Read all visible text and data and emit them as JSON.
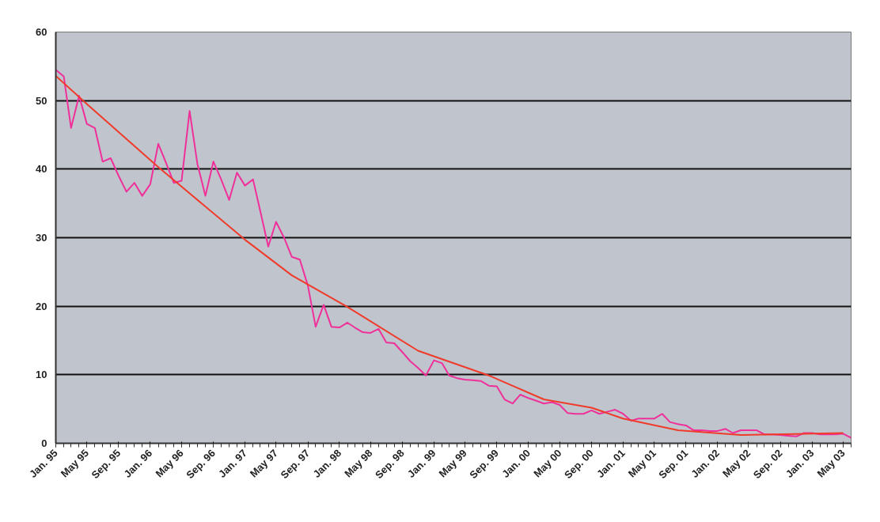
{
  "chart_data": {
    "type": "line",
    "x": [
      "1995-01",
      "1995-02",
      "1995-03",
      "1995-04",
      "1995-05",
      "1995-06",
      "1995-07",
      "1995-08",
      "1995-09",
      "1995-10",
      "1995-11",
      "1995-12",
      "1996-01",
      "1996-02",
      "1996-03",
      "1996-04",
      "1996-05",
      "1996-06",
      "1996-07",
      "1996-08",
      "1996-09",
      "1996-10",
      "1996-11",
      "1996-12",
      "1997-01",
      "1997-02",
      "1997-03",
      "1997-04",
      "1997-05",
      "1997-06",
      "1997-07",
      "1997-08",
      "1997-09",
      "1997-10",
      "1997-11",
      "1997-12",
      "1998-01",
      "1998-02",
      "1998-03",
      "1998-04",
      "1998-05",
      "1998-06",
      "1998-07",
      "1998-08",
      "1998-09",
      "1998-10",
      "1998-11",
      "1998-12",
      "1999-01",
      "1999-02",
      "1999-03",
      "1999-04",
      "1999-05",
      "1999-06",
      "1999-07",
      "1999-08",
      "1999-09",
      "1999-10",
      "1999-11",
      "1999-12",
      "2000-01",
      "2000-02",
      "2000-03",
      "2000-04",
      "2000-05",
      "2000-06",
      "2000-07",
      "2000-08",
      "2000-09",
      "2000-10",
      "2000-11",
      "2000-12",
      "2001-01",
      "2001-02",
      "2001-03",
      "2001-04",
      "2001-05",
      "2001-06",
      "2001-07",
      "2001-08",
      "2001-09",
      "2001-10",
      "2001-11",
      "2001-12",
      "2002-01",
      "2002-02",
      "2002-03",
      "2002-04",
      "2002-05",
      "2002-06",
      "2002-07",
      "2002-08",
      "2002-09",
      "2002-10",
      "2002-11",
      "2002-12",
      "2003-01",
      "2003-02",
      "2003-03",
      "2003-04",
      "2003-05",
      "2003-06"
    ],
    "series": [
      {
        "color": "#f0309a",
        "values": [
          54.5,
          53.5,
          46,
          50.7,
          46.6,
          46,
          41.1,
          41.6,
          39,
          36.7,
          38,
          36.1,
          37.8,
          43.7,
          41,
          38,
          38.3,
          48.5,
          40.8,
          36.1,
          41.1,
          38.5,
          35.5,
          39.5,
          37.6,
          38.5,
          33.9,
          28.7,
          32.3,
          30,
          27.2,
          26.8,
          23,
          17,
          20.2,
          17,
          16.9,
          17.6,
          16.9,
          16.2,
          16.1,
          16.7,
          14.7,
          14.6,
          13.3,
          12,
          11,
          9.9,
          12.1,
          11.7,
          9.9,
          9.5,
          9.3,
          9.2,
          9.1,
          8.4,
          8.3,
          6.4,
          5.8,
          7.1,
          6.6,
          6.2,
          5.8,
          6,
          5.6,
          4.4,
          4.3,
          4.3,
          4.8,
          4.3,
          4.6,
          4.9,
          4.3,
          3.3,
          3.6,
          3.6,
          3.6,
          4.3,
          3.1,
          2.8,
          2.6,
          1.9,
          1.9,
          1.8,
          1.8,
          2.1,
          1.5,
          1.9,
          1.9,
          1.9,
          1.3,
          1.3,
          1.2,
          1.1,
          1.0,
          1.5,
          1.5,
          1.3,
          1.3,
          1.3,
          1.4,
          0.8
        ]
      },
      {
        "type": "line",
        "color": "#f03a2a",
        "x": [
          "1995-01",
          "1995-05",
          "1996-02",
          "1997-01",
          "1997-07",
          "1998-02",
          "1998-11",
          "1999-08",
          "1999-10",
          "2000-03",
          "2000-09",
          "2001-01",
          "2001-08",
          "2002-04",
          "2003-05"
        ],
        "values": [
          53.6,
          49.5,
          40.3,
          29.7,
          24.5,
          19.9,
          13.5,
          9.9,
          8.9,
          6.4,
          5.2,
          3.6,
          1.9,
          1.2,
          1.5
        ]
      }
    ],
    "xlim": [
      "1995-01",
      "2003-06"
    ],
    "xticks": [
      {
        "value": "1995-01",
        "label": "Jan. 95"
      },
      {
        "value": "1995-05",
        "label": "May 95"
      },
      {
        "value": "1995-09",
        "label": "Sep. 95"
      },
      {
        "value": "1996-01",
        "label": "Jan. 96"
      },
      {
        "value": "1996-05",
        "label": "May 96"
      },
      {
        "value": "1996-09",
        "label": "Sep. 96"
      },
      {
        "value": "1997-01",
        "label": "Jan. 97"
      },
      {
        "value": "1997-05",
        "label": "May 97"
      },
      {
        "value": "1997-09",
        "label": "Sep. 97"
      },
      {
        "value": "1998-01",
        "label": "Jan. 98"
      },
      {
        "value": "1998-05",
        "label": "May 98"
      },
      {
        "value": "1998-09",
        "label": "Sep. 98"
      },
      {
        "value": "1999-01",
        "label": "Jan. 99"
      },
      {
        "value": "1999-05",
        "label": "May 99"
      },
      {
        "value": "1999-09",
        "label": "Sep. 99"
      },
      {
        "value": "2000-01",
        "label": "Jan. 00"
      },
      {
        "value": "2000-05",
        "label": "May 00"
      },
      {
        "value": "2000-09",
        "label": "Sep. 00"
      },
      {
        "value": "2001-01",
        "label": "Jan. 01"
      },
      {
        "value": "2001-05",
        "label": "May 01"
      },
      {
        "value": "2001-09",
        "label": "Sep. 01"
      },
      {
        "value": "2002-01",
        "label": "Jan. 02"
      },
      {
        "value": "2002-05",
        "label": "May 02"
      },
      {
        "value": "2002-09",
        "label": "Sep. 02"
      },
      {
        "value": "2003-01",
        "label": "Jan. 03"
      },
      {
        "value": "2003-05",
        "label": "May 03"
      }
    ],
    "ylim": [
      0,
      60
    ],
    "yticks": [
      0,
      10,
      20,
      30,
      40,
      50,
      60
    ],
    "grid": "y",
    "marker": "none",
    "line_style": "solid"
  }
}
